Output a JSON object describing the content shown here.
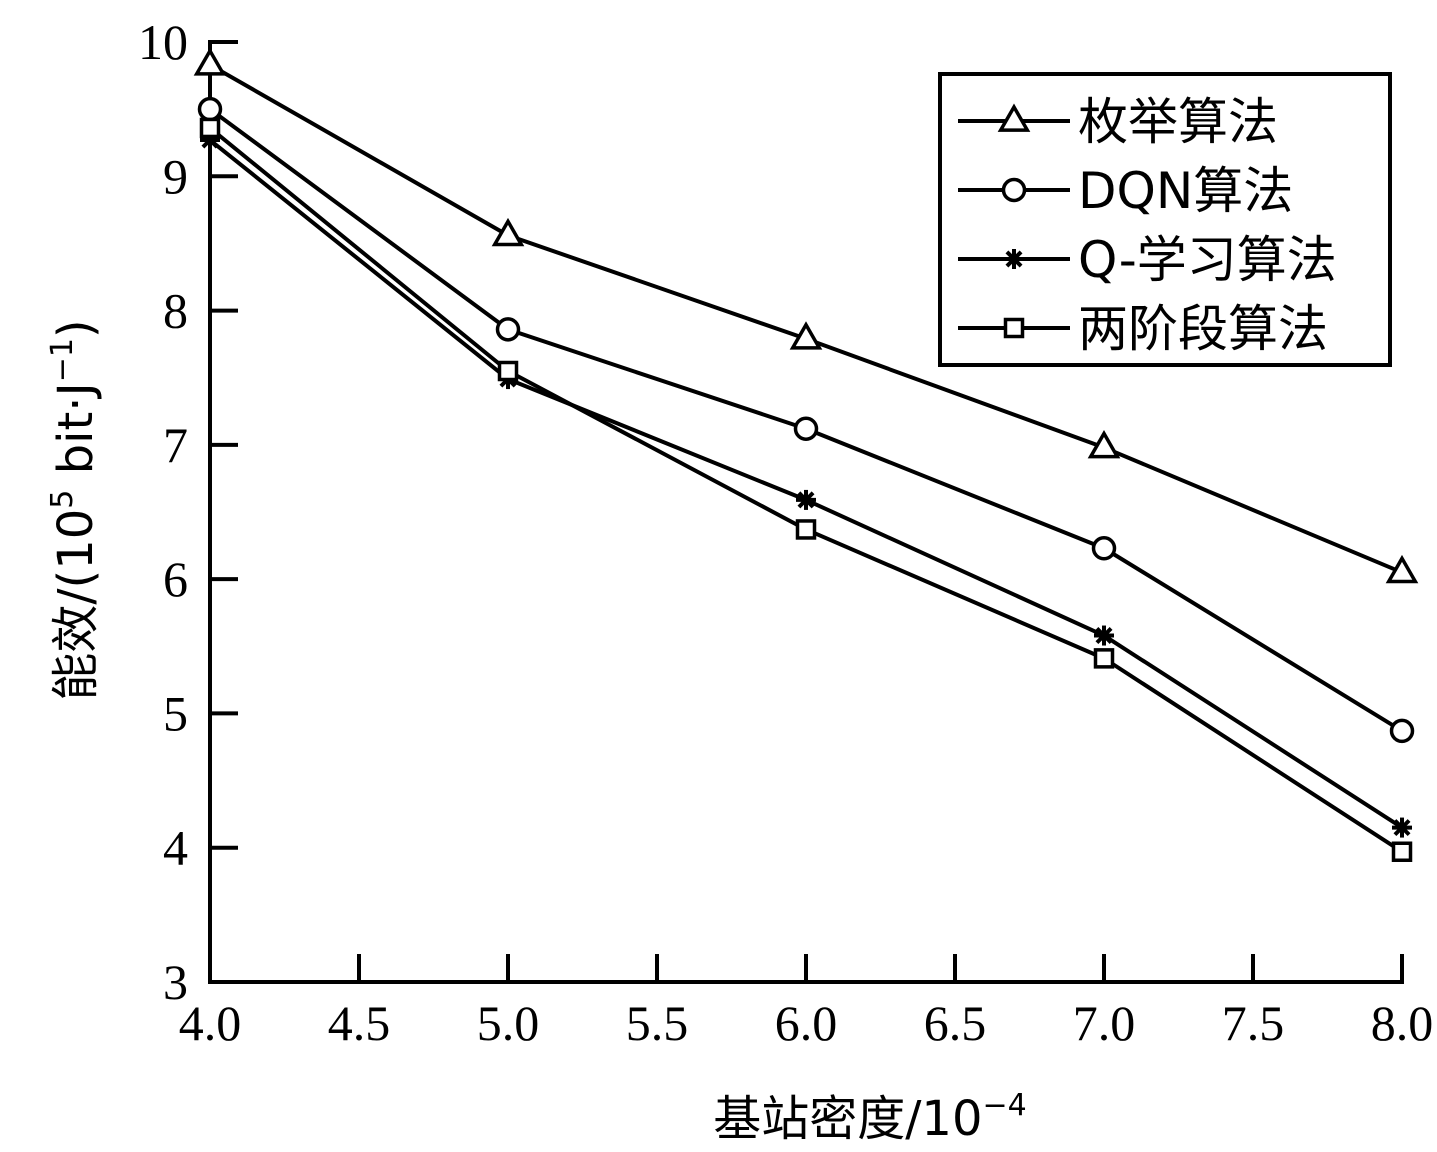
{
  "chart_data": {
    "type": "line",
    "x": [
      4.0,
      5.0,
      6.0,
      7.0,
      8.0
    ],
    "series": [
      {
        "name": "枚举算法",
        "marker": "triangle",
        "values": [
          9.83,
          8.56,
          7.79,
          6.98,
          6.05
        ]
      },
      {
        "name": "DQN算法",
        "marker": "circle",
        "values": [
          9.5,
          7.86,
          7.12,
          6.23,
          4.87
        ]
      },
      {
        "name": "Q-学习算法",
        "marker": "star",
        "values": [
          9.27,
          7.49,
          6.59,
          5.58,
          4.15
        ]
      },
      {
        "name": "两阶段算法",
        "marker": "square",
        "values": [
          9.36,
          7.55,
          6.37,
          5.41,
          3.97
        ]
      }
    ],
    "xlim": [
      4.0,
      8.0
    ],
    "ylim": [
      3,
      10
    ],
    "x_ticks": [
      "4.0",
      "4.5",
      "5.0",
      "5.5",
      "6.0",
      "6.5",
      "7.0",
      "7.5",
      "8.0"
    ],
    "y_ticks": [
      "3",
      "4",
      "5",
      "6",
      "7",
      "8",
      "9",
      "10"
    ],
    "xlabel": {
      "base": "基站密度/10",
      "sup": "−4"
    },
    "ylabel": {
      "pre": "能效/(10",
      "sup1": "5",
      "mid": " bit·J",
      "sup2": "−1",
      "post": ")"
    },
    "grid": false,
    "legend_position": "top-right"
  }
}
